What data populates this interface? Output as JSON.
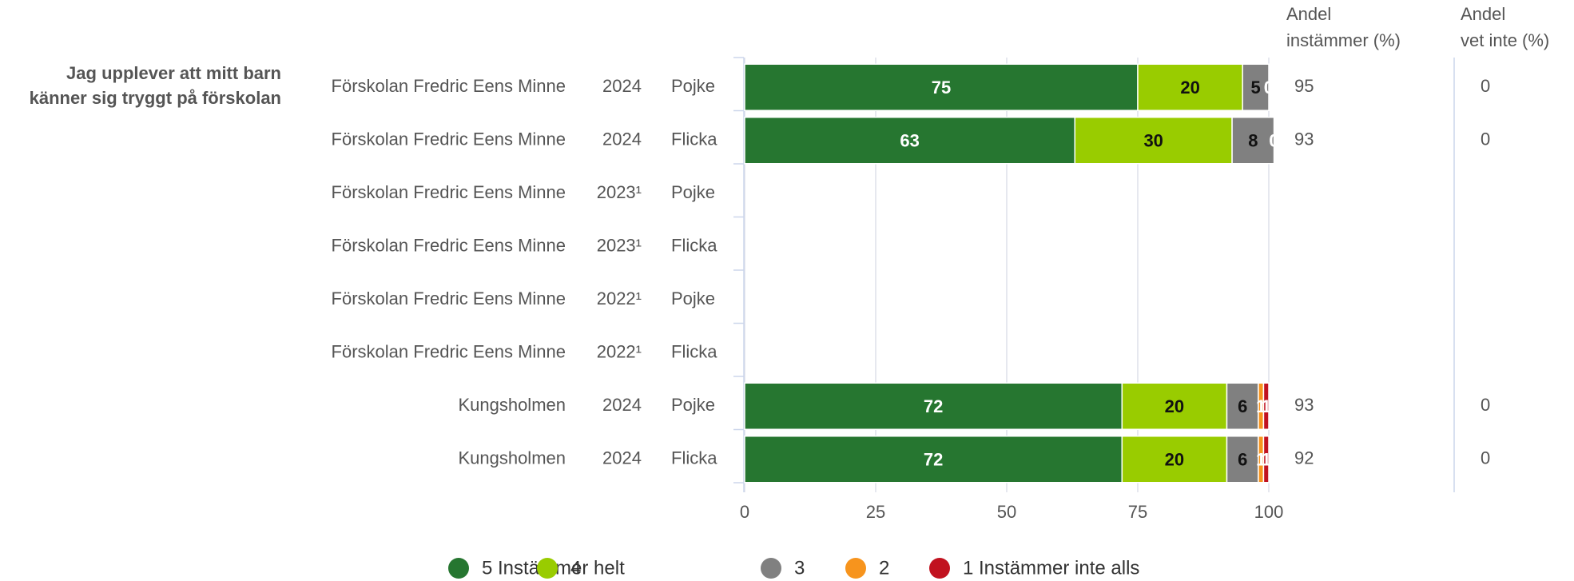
{
  "chart_data": {
    "type": "bar",
    "orientation": "horizontal",
    "stacked": true,
    "question_lines": [
      "Jag upplever att mitt barn",
      "känner sig tryggt på förskolan"
    ],
    "categories": [
      [
        "Förskolan Fredric Eens Minne",
        "2024",
        "Pojke"
      ],
      [
        "Förskolan Fredric Eens Minne",
        "2024",
        "Flicka"
      ],
      [
        "Förskolan Fredric Eens Minne",
        "2023¹",
        "Pojke"
      ],
      [
        "Förskolan Fredric Eens Minne",
        "2023¹",
        "Flicka"
      ],
      [
        "Förskolan Fredric Eens Minne",
        "2022¹",
        "Pojke"
      ],
      [
        "Förskolan Fredric Eens Minne",
        "2022¹",
        "Flicka"
      ],
      [
        "Kungsholmen",
        "2024",
        "Pojke"
      ],
      [
        "Kungsholmen",
        "2024",
        "Flicka"
      ]
    ],
    "series": [
      {
        "name": "5 Instämmer helt",
        "color": "#267630",
        "label_color": "#ffffff",
        "values": [
          75,
          63,
          null,
          null,
          null,
          null,
          72,
          72
        ]
      },
      {
        "name": "4",
        "color": "#99cc00",
        "label_color": "#111111",
        "values": [
          20,
          30,
          null,
          null,
          null,
          null,
          20,
          20
        ]
      },
      {
        "name": "3",
        "color": "#808080",
        "label_color": "#111111",
        "values": [
          5,
          8,
          null,
          null,
          null,
          null,
          6,
          6
        ]
      },
      {
        "name": "2",
        "color": "#f7941d",
        "label_color": "#ffffff",
        "values": [
          0,
          0,
          null,
          null,
          null,
          null,
          1,
          1
        ]
      },
      {
        "name": "1 Instämmer inte alls",
        "color": "#c1121f",
        "label_color": "#ffffff",
        "values": [
          0,
          0,
          null,
          null,
          null,
          null,
          1,
          1
        ]
      }
    ],
    "xlim": [
      0,
      100
    ],
    "xticks": [
      0,
      25,
      50,
      75,
      100
    ],
    "grid": true,
    "columns": [
      {
        "header": [
          "Andel",
          "instämmer (%)"
        ],
        "values": [
          95,
          93,
          null,
          null,
          null,
          null,
          93,
          92
        ]
      },
      {
        "header": [
          "Andel",
          "vet inte (%)"
        ],
        "values": [
          0,
          0,
          null,
          null,
          null,
          null,
          0,
          0
        ]
      }
    ]
  }
}
